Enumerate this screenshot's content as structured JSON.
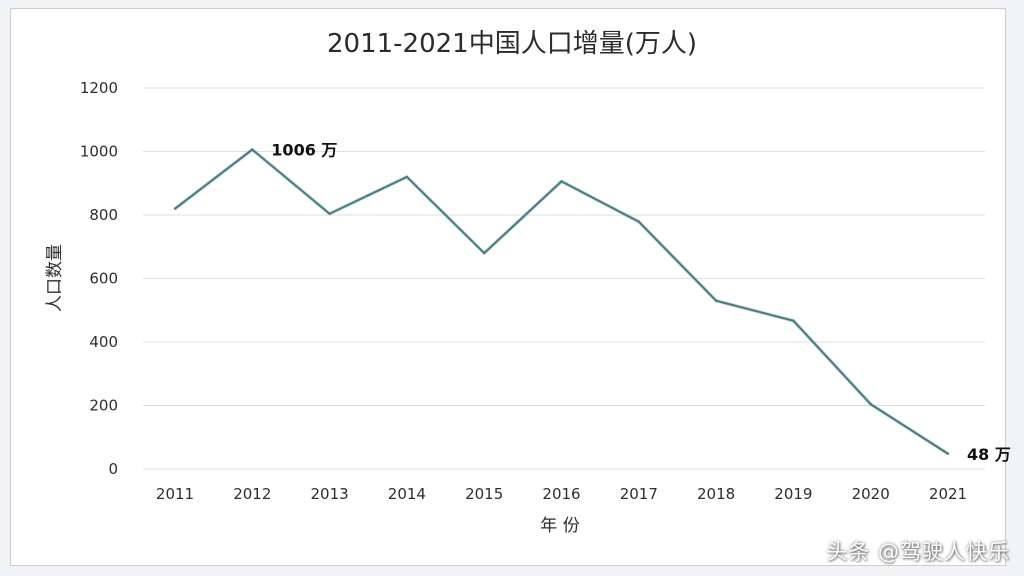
{
  "colors": {
    "line": "#3f7f86",
    "grid": "#dcdfe3",
    "background": "#ffffff"
  },
  "watermark": "头条 @驾驶人快乐",
  "chart_data": {
    "type": "line",
    "title": "2011-2021中国人口增量(万人)",
    "xlabel": "年 份",
    "ylabel": "人口数量",
    "categories": [
      "2011",
      "2012",
      "2013",
      "2014",
      "2015",
      "2016",
      "2017",
      "2018",
      "2019",
      "2020",
      "2021"
    ],
    "series": [
      {
        "values": [
          820,
          1006,
          804,
          920,
          680,
          906,
          779,
          530,
          467,
          204,
          48
        ]
      }
    ],
    "ylim": [
      0,
      1200
    ],
    "yticks": [
      "0",
      "200",
      "400",
      "600",
      "800",
      "1000",
      "1200"
    ],
    "grid": true,
    "annotations": [
      {
        "category": "2012",
        "text": "1006 万"
      },
      {
        "category": "2021",
        "text": "48 万"
      }
    ]
  }
}
